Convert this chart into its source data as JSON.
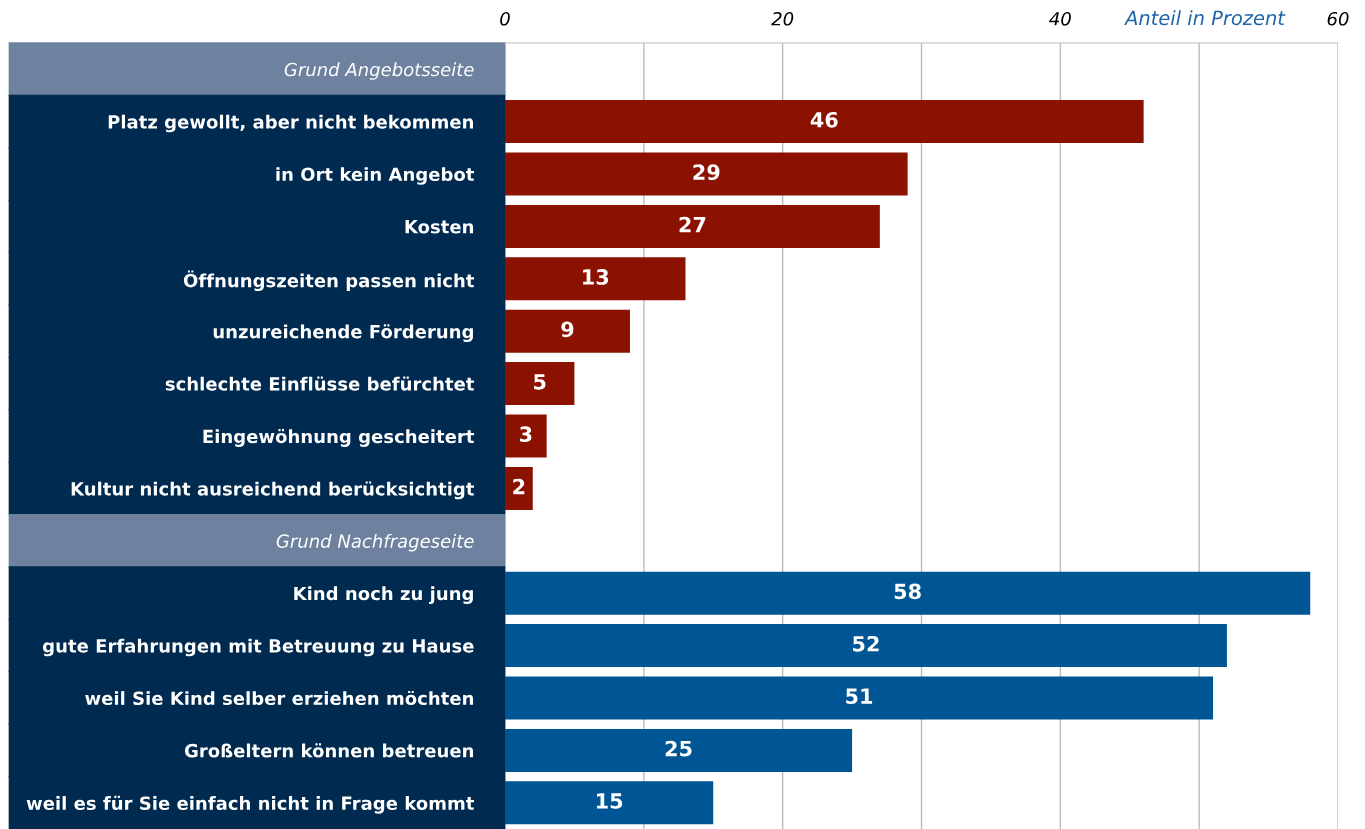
{
  "chart_data": {
    "type": "bar",
    "orientation": "horizontal",
    "data_labels": true,
    "grid": "x",
    "legend": false,
    "xlabel": "Anteil in Prozent",
    "categories": [
      "Grund Angebotsseite",
      "Platz gewollt, aber nicht bekommen",
      "in Ort kein Angebot",
      "Kosten",
      "Öffnungszeiten passen nicht",
      "unzureichende Förderung",
      "schlechte Einflüsse befürchtet",
      "Eingewöhnung gescheitert",
      "Kultur nicht ausreichend berücksichtigt",
      "Grund Nachfrageseite",
      "Kind noch zu jung",
      "gute Erfahrungen mit Betreuung zu Hause",
      "weil Sie Kind selber erziehen möchten",
      "Großeltern können betreuen",
      "weil es für Sie einfach nicht in Frage kommt"
    ],
    "series": [
      {
        "color": "#8b1200",
        "values": [
          null,
          46,
          29,
          27,
          13,
          9,
          5,
          3,
          2,
          null,
          null,
          null,
          null,
          null,
          null
        ]
      },
      {
        "color": "#005594",
        "values": [
          null,
          null,
          null,
          null,
          null,
          null,
          null,
          null,
          null,
          null,
          58,
          52,
          51,
          25,
          15
        ]
      }
    ],
    "xlim": [
      0,
      60
    ],
    "xticks": [
      0,
      {
        "value": 10,
        "label": null
      },
      20,
      {
        "value": 30,
        "label": null
      },
      40,
      {
        "value": 50,
        "label": null
      },
      60
    ]
  }
}
